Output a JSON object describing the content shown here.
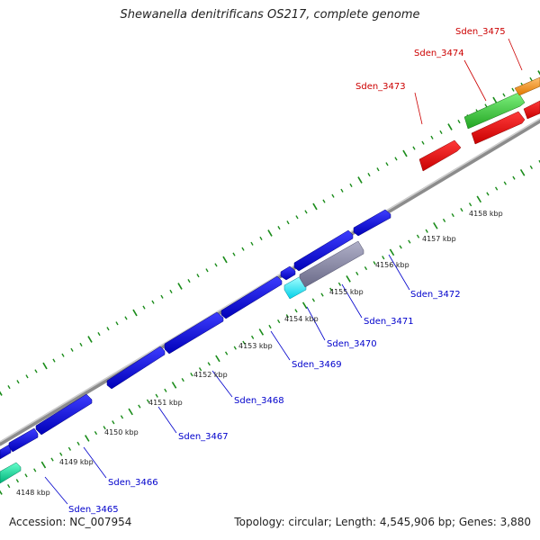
{
  "title": "Shewanella denitrificans OS217, complete genome",
  "footer": {
    "accession": "Accession: NC_007954",
    "summary": "Topology: circular; Length: 4,545,906 bp; Genes: 3,880"
  },
  "colors": {
    "backbone": "#8c8c8c",
    "tick": "#1a8c1a",
    "forward_gene_label": "#cc0000",
    "reverse_gene_label": "#0000cc"
  },
  "kbp_labels": [
    "4148 kbp",
    "4149 kbp",
    "4150 kbp",
    "4151 kbp",
    "4152 kbp",
    "4153 kbp",
    "4154 kbp",
    "4155 kbp",
    "4156 kbp",
    "4157 kbp",
    "4158 kbp"
  ],
  "gene_labels_forward": [
    "Sden_3473",
    "Sden_3474",
    "Sden_3475"
  ],
  "gene_labels_reverse": [
    "Sden_3465",
    "Sden_3466",
    "Sden_3467",
    "Sden_3468",
    "Sden_3469",
    "Sden_3470",
    "Sden_3471",
    "Sden_3472"
  ]
}
